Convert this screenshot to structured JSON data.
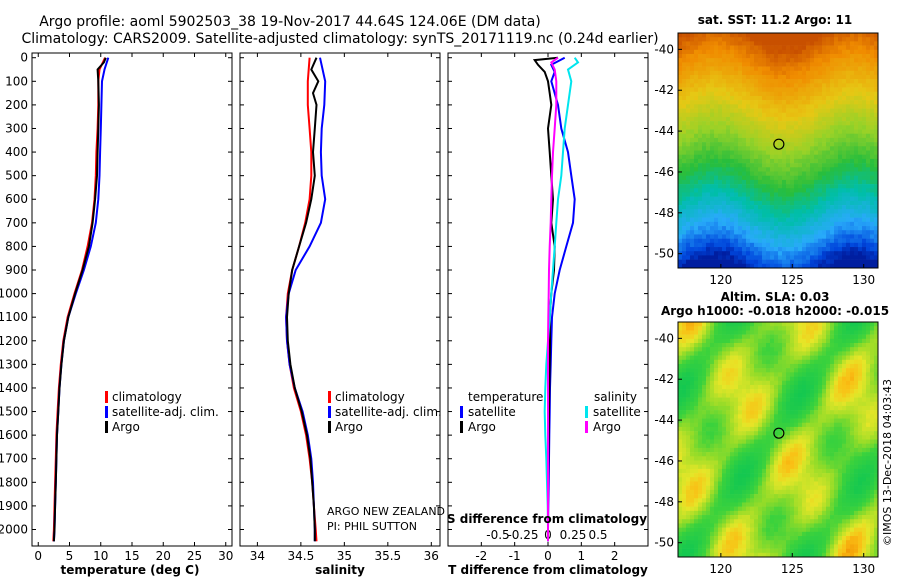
{
  "header": {
    "title1": "Argo profile: aoml 5902503_38 19-Nov-2017 44.64S 124.06E (DM data)",
    "title2": "Climatology: CARS2009. Satellite-adjusted climatology: synTS_20171119.nc (0.24d earlier)"
  },
  "colors": {
    "climatology": "#ff0000",
    "satellite_adj": "#0000ff",
    "argo": "#000000",
    "satellite_salinity": "#00e5ee",
    "argo_salinity": "#ff00ff"
  },
  "depth_ticks": [
    "0",
    "100",
    "200",
    "300",
    "400",
    "500",
    "600",
    "700",
    "800",
    "900",
    "1000",
    "1100",
    "1200",
    "1300",
    "1400",
    "1500",
    "1600",
    "1700",
    "1800",
    "1900",
    "2000"
  ],
  "legend1": {
    "items": [
      "climatology",
      "satellite-adj. clim.",
      "Argo"
    ]
  },
  "legend2": {
    "items": [
      "climatology",
      "satellite-adj. clim.",
      "Argo"
    ]
  },
  "legend3": {
    "temp_head": "temperature",
    "sal_head": "salinity",
    "satellite": "satellite",
    "argo": "Argo"
  },
  "float_info": {
    "line1": "ARGO NEW ZEALAND",
    "line2": "PI: PHIL SUTTON"
  },
  "map1": {
    "title": "sat. SST: 11.2 Argo: 11",
    "x_ticks": [
      "120",
      "125",
      "130"
    ],
    "y_ticks": [
      "-40",
      "-42",
      "-44",
      "-46",
      "-48",
      "-50"
    ]
  },
  "map2": {
    "title1": "Altim. SLA: 0.03",
    "title2": "Argo h1000: -0.018 h2000: -0.015",
    "x_ticks": [
      "120",
      "125",
      "130"
    ],
    "y_ticks": [
      "-40",
      "-42",
      "-44",
      "-46",
      "-48",
      "-50"
    ]
  },
  "credit": "©IMOS 13-Dec-2018 04:03:43",
  "chart_data": [
    {
      "type": "line",
      "title": "",
      "xlabel": "temperature (deg C)",
      "ylabel": "",
      "xlim": [
        -1,
        31
      ],
      "ylim": [
        2070,
        -20
      ],
      "x_ticks": [
        "0",
        "5",
        "10",
        "15",
        "20",
        "25",
        "30"
      ],
      "series": [
        {
          "name": "climatology",
          "depth": [
            0,
            50,
            100,
            200,
            300,
            400,
            500,
            600,
            700,
            800,
            900,
            1000,
            1100,
            1200,
            1300,
            1400,
            1500,
            1600,
            1700,
            1800,
            1900,
            2000,
            2050
          ],
          "values": [
            10.7,
            9.8,
            9.6,
            9.6,
            9.5,
            9.3,
            9.2,
            9.0,
            8.6,
            7.9,
            7.0,
            5.8,
            4.7,
            4.0,
            3.6,
            3.3,
            3.1,
            2.9,
            2.8,
            2.7,
            2.6,
            2.5,
            2.4
          ]
        },
        {
          "name": "satellite-adj. clim.",
          "depth": [
            0,
            50,
            100,
            200,
            300,
            400,
            500,
            600,
            700,
            800,
            900,
            1000,
            1100,
            1200,
            1300,
            1400,
            1500,
            1600,
            1700,
            1800,
            1900,
            2000,
            2050
          ],
          "values": [
            11.2,
            10.6,
            10.2,
            10.1,
            10.0,
            9.9,
            9.8,
            9.6,
            9.2,
            8.4,
            7.3,
            6.0,
            4.8,
            4.1,
            3.7,
            3.4,
            3.2,
            3.0,
            2.9,
            2.8,
            2.7,
            2.6,
            2.5
          ]
        },
        {
          "name": "Argo",
          "depth": [
            0,
            20,
            50,
            100,
            200,
            300,
            400,
            500,
            600,
            700,
            800,
            900,
            1000,
            1100,
            1200,
            1300,
            1400,
            1500,
            1600,
            1700,
            1800,
            1900,
            2000,
            2050
          ],
          "values": [
            10.8,
            10.5,
            9.5,
            9.6,
            9.7,
            9.6,
            9.5,
            9.4,
            9.1,
            8.7,
            8.1,
            7.1,
            5.9,
            4.8,
            4.1,
            3.7,
            3.4,
            3.2,
            3.0,
            2.9,
            2.8,
            2.7,
            2.6,
            2.5
          ]
        }
      ]
    },
    {
      "type": "line",
      "title": "",
      "xlabel": "salinity",
      "ylabel": "",
      "xlim": [
        33.8,
        36.1
      ],
      "ylim": [
        2070,
        -20
      ],
      "x_ticks": [
        "34",
        "34.5",
        "35",
        "35.5",
        "36"
      ],
      "series": [
        {
          "name": "climatology",
          "depth": [
            0,
            100,
            200,
            300,
            400,
            500,
            600,
            700,
            800,
            900,
            1000,
            1100,
            1200,
            1300,
            1400,
            1500,
            1600,
            1700,
            1800,
            1900,
            2000,
            2050
          ],
          "values": [
            34.6,
            34.58,
            34.58,
            34.6,
            34.62,
            34.62,
            34.6,
            34.55,
            34.48,
            34.4,
            34.35,
            34.33,
            34.34,
            34.37,
            34.42,
            34.5,
            34.56,
            34.6,
            34.63,
            34.65,
            34.67,
            34.68
          ]
        },
        {
          "name": "satellite-adj. clim.",
          "depth": [
            0,
            100,
            200,
            300,
            400,
            500,
            600,
            700,
            800,
            900,
            1000,
            1100,
            1200,
            1300,
            1400,
            1500,
            1600,
            1700,
            1800,
            1900,
            2000,
            2050
          ],
          "values": [
            34.72,
            34.78,
            34.77,
            34.74,
            34.73,
            34.74,
            34.78,
            34.73,
            34.6,
            34.44,
            34.36,
            34.33,
            34.34,
            34.37,
            34.43,
            34.52,
            34.58,
            34.62,
            34.64,
            34.65,
            34.66,
            34.66
          ]
        },
        {
          "name": "Argo",
          "depth": [
            0,
            50,
            100,
            150,
            200,
            300,
            400,
            500,
            600,
            700,
            800,
            900,
            1000,
            1100,
            1200,
            1300,
            1400,
            1500,
            1600,
            1700,
            1800,
            1900,
            2000,
            2050
          ],
          "values": [
            34.68,
            34.62,
            34.7,
            34.64,
            34.68,
            34.66,
            34.64,
            34.66,
            34.62,
            34.56,
            34.48,
            34.4,
            34.36,
            34.34,
            34.35,
            34.38,
            34.43,
            34.51,
            34.57,
            34.61,
            34.63,
            34.65,
            34.66,
            34.66
          ]
        }
      ]
    },
    {
      "type": "line",
      "title": "",
      "xlabel": "T difference from climatology",
      "xlabel_top": "S difference from climatology",
      "ylabel": "",
      "xlim": [
        -3,
        3
      ],
      "ylim": [
        2070,
        -20
      ],
      "x_ticks": [
        {
          "v": -2,
          "t": "-2"
        },
        {
          "v": -1,
          "t": "-1"
        },
        {
          "v": 0,
          "t": "0"
        },
        {
          "v": 1,
          "t": "1"
        },
        {
          "v": 2,
          "t": "2"
        }
      ],
      "s_ticks": [
        {
          "v": -1.5,
          "t": "-0.5"
        },
        {
          "v": -0.75,
          "t": "-0.25"
        },
        {
          "v": 0,
          "t": "0"
        },
        {
          "v": 0.75,
          "t": "0.25"
        },
        {
          "v": 1.5,
          "t": "0.5"
        }
      ],
      "series": [
        {
          "name": "temperature satellite",
          "depth": [
            0,
            30,
            60,
            100,
            200,
            300,
            400,
            500,
            600,
            700,
            800,
            900,
            1000,
            1100,
            1200,
            1300,
            1400,
            1500,
            1600,
            1700,
            1800,
            1900,
            2000,
            2050
          ],
          "values": [
            0.5,
            0.1,
            0.2,
            0.1,
            0.3,
            0.4,
            0.6,
            0.7,
            0.8,
            0.75,
            0.55,
            0.35,
            0.2,
            0.12,
            0.1,
            0.08,
            0.06,
            0.05,
            0.04,
            0.03,
            0.02,
            0.01,
            0.0,
            0.0
          ]
        },
        {
          "name": "temperature Argo",
          "depth": [
            0,
            10,
            30,
            60,
            100,
            150,
            200,
            300,
            400,
            500,
            600,
            700,
            800,
            900,
            1000,
            1100,
            1200,
            1300,
            1400,
            1500,
            1600,
            1700,
            1800,
            1900,
            2000,
            2050
          ],
          "values": [
            0.3,
            -0.4,
            -0.3,
            -0.1,
            0.0,
            0.05,
            0.1,
            0.0,
            0.05,
            0.1,
            0.15,
            0.1,
            0.2,
            0.18,
            0.1,
            0.05,
            0.06,
            0.05,
            0.04,
            0.03,
            0.02,
            0.01,
            0.0,
            0.0,
            0.0,
            0.0
          ]
        },
        {
          "name": "salinity satellite",
          "depth": [
            0,
            20,
            50,
            100,
            200,
            300,
            400,
            500,
            600,
            700,
            800,
            900,
            1000,
            1100,
            1200,
            1300,
            1400,
            1500,
            1600,
            1700,
            1800,
            1900,
            2000,
            2050
          ],
          "values": [
            0.8,
            0.9,
            0.6,
            0.7,
            0.6,
            0.5,
            0.45,
            0.4,
            0.3,
            0.25,
            0.2,
            0.15,
            0.1,
            0.05,
            0.0,
            -0.05,
            -0.08,
            -0.1,
            -0.08,
            -0.05,
            -0.03,
            -0.01,
            0.0,
            0.0
          ]
        },
        {
          "name": "salinity Argo",
          "depth": [
            0,
            20,
            50,
            100,
            200,
            300,
            400,
            500,
            600,
            700,
            800,
            900,
            1000,
            1100,
            1200,
            1300,
            1400,
            1500,
            1600,
            1700,
            1800,
            1900,
            2000,
            2050
          ],
          "values": [
            0.3,
            0.1,
            0.2,
            0.25,
            0.25,
            0.2,
            0.15,
            0.12,
            0.1,
            0.08,
            0.05,
            0.03,
            0.02,
            0.01,
            0.0,
            0.0,
            0.0,
            0.0,
            0.0,
            0.0,
            0.0,
            0.0,
            0.0,
            0.0
          ]
        }
      ]
    }
  ]
}
